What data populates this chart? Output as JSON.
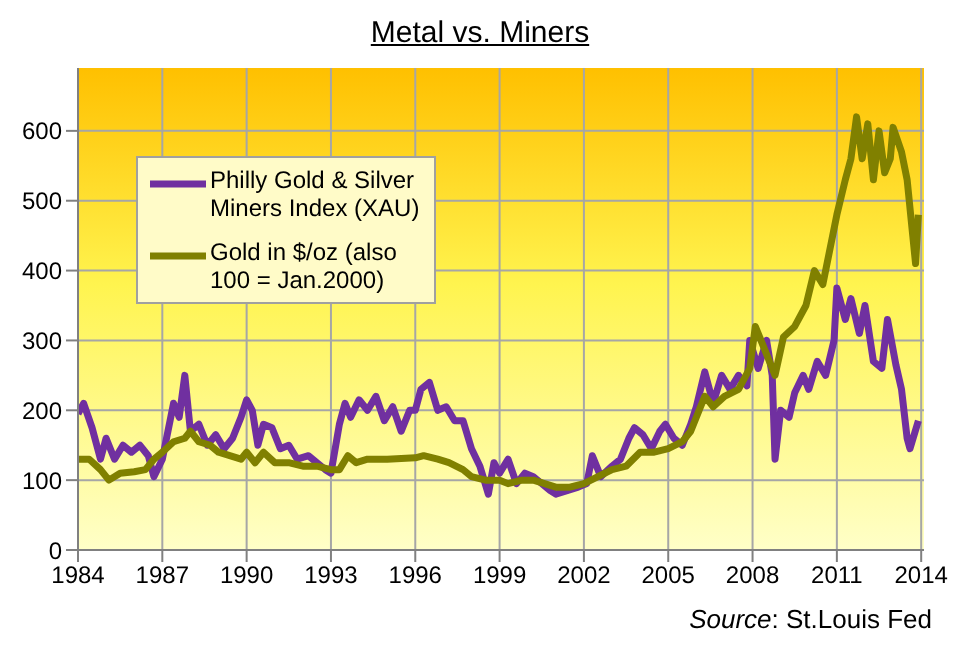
{
  "chart_data": {
    "type": "line",
    "title": "Metal vs. Miners",
    "annotations": [
      "Source: St.Louis Fed"
    ],
    "xlim": [
      1984,
      2014.1
    ],
    "xticks": [
      1984,
      1987,
      1990,
      1993,
      1996,
      1999,
      2002,
      2005,
      2008,
      2011,
      2014
    ],
    "ylim": [
      0,
      690
    ],
    "yticks": [
      0,
      100,
      200,
      300,
      400,
      500,
      600
    ],
    "grid": true,
    "legend": "top left",
    "marker": "none",
    "line_style": "solid",
    "series": [
      {
        "name": "Philly Gold & Silver Miners Index (XAU)",
        "color": "#7030a0",
        "x": [
          1984.0,
          1984.2,
          1984.5,
          1984.8,
          1985.0,
          1985.3,
          1985.6,
          1985.9,
          1986.2,
          1986.5,
          1986.7,
          1987.0,
          1987.2,
          1987.4,
          1987.6,
          1987.8,
          1988.0,
          1988.3,
          1988.6,
          1988.9,
          1989.2,
          1989.5,
          1989.8,
          1990.0,
          1990.2,
          1990.4,
          1990.6,
          1990.9,
          1991.2,
          1991.5,
          1991.8,
          1992.2,
          1992.5,
          1992.8,
          1993.0,
          1993.3,
          1993.5,
          1993.7,
          1994.0,
          1994.3,
          1994.6,
          1994.9,
          1995.2,
          1995.5,
          1995.8,
          1996.0,
          1996.2,
          1996.5,
          1996.8,
          1997.1,
          1997.4,
          1997.7,
          1998.0,
          1998.3,
          1998.6,
          1998.8,
          1999.0,
          1999.3,
          1999.6,
          1999.9,
          2000.2,
          2000.5,
          2000.8,
          2001.0,
          2001.4,
          2001.8,
          2002.1,
          2002.3,
          2002.6,
          2003.0,
          2003.3,
          2003.6,
          2003.8,
          2004.1,
          2004.4,
          2004.7,
          2004.9,
          2005.2,
          2005.5,
          2005.8,
          2006.0,
          2006.3,
          2006.6,
          2006.9,
          2007.2,
          2007.5,
          2007.8,
          2007.9,
          2008.2,
          2008.5,
          2008.7,
          2008.8,
          2009.0,
          2009.3,
          2009.5,
          2009.8,
          2010.0,
          2010.3,
          2010.6,
          2010.9,
          2011.0,
          2011.3,
          2011.5,
          2011.8,
          2012.0,
          2012.3,
          2012.6,
          2012.8,
          2013.1,
          2013.3,
          2013.5,
          2013.6,
          2013.9
        ],
        "values": [
          195,
          210,
          175,
          130,
          160,
          130,
          150,
          140,
          150,
          135,
          105,
          130,
          170,
          210,
          190,
          250,
          170,
          180,
          150,
          165,
          145,
          160,
          190,
          215,
          200,
          150,
          180,
          175,
          145,
          150,
          130,
          135,
          125,
          115,
          110,
          180,
          210,
          190,
          215,
          200,
          220,
          185,
          205,
          170,
          200,
          200,
          230,
          240,
          200,
          205,
          185,
          185,
          145,
          120,
          80,
          125,
          110,
          130,
          95,
          110,
          105,
          95,
          85,
          80,
          85,
          90,
          95,
          135,
          105,
          120,
          130,
          160,
          175,
          165,
          145,
          170,
          180,
          160,
          150,
          180,
          205,
          255,
          210,
          250,
          230,
          250,
          235,
          300,
          260,
          300,
          250,
          130,
          200,
          190,
          225,
          250,
          230,
          270,
          250,
          300,
          375,
          330,
          360,
          310,
          350,
          270,
          260,
          330,
          265,
          230,
          160,
          145,
          185
        ]
      },
      {
        "name": "Gold in $/oz (also 100 = Jan.2000)",
        "color": "#808000",
        "x": [
          1984.0,
          1984.4,
          1984.8,
          1985.1,
          1985.5,
          1986.0,
          1986.4,
          1986.7,
          1987.0,
          1987.4,
          1987.8,
          1988.0,
          1988.3,
          1988.7,
          1989.0,
          1989.4,
          1989.8,
          1990.0,
          1990.3,
          1990.6,
          1991.0,
          1991.5,
          1992.0,
          1992.5,
          1993.0,
          1993.3,
          1993.6,
          1993.9,
          1994.3,
          1995.0,
          1996.0,
          1996.3,
          1996.8,
          1997.2,
          1997.7,
          1998.0,
          1998.5,
          1999.0,
          1999.3,
          1999.8,
          2000.2,
          2000.6,
          2001.0,
          2001.5,
          2002.0,
          2002.5,
          2003.0,
          2003.5,
          2004.0,
          2004.5,
          2005.0,
          2005.5,
          2005.8,
          2006.3,
          2006.6,
          2007.0,
          2007.5,
          2007.9,
          2008.1,
          2008.4,
          2008.8,
          2009.1,
          2009.5,
          2009.9,
          2010.2,
          2010.5,
          2010.8,
          2011.0,
          2011.3,
          2011.5,
          2011.7,
          2011.9,
          2012.1,
          2012.3,
          2012.5,
          2012.7,
          2012.9,
          2013.0,
          2013.3,
          2013.5,
          2013.7,
          2013.8,
          2013.9
        ],
        "values": [
          130,
          130,
          115,
          100,
          110,
          112,
          115,
          130,
          140,
          155,
          160,
          170,
          155,
          150,
          140,
          135,
          130,
          140,
          125,
          140,
          125,
          125,
          120,
          120,
          115,
          115,
          135,
          125,
          130,
          130,
          132,
          135,
          130,
          125,
          115,
          105,
          100,
          100,
          95,
          100,
          100,
          95,
          90,
          90,
          95,
          105,
          115,
          120,
          140,
          140,
          145,
          155,
          170,
          220,
          205,
          220,
          230,
          260,
          320,
          290,
          250,
          305,
          320,
          350,
          400,
          380,
          440,
          480,
          530,
          560,
          620,
          560,
          610,
          530,
          600,
          540,
          560,
          605,
          570,
          530,
          450,
          410,
          480
        ]
      }
    ]
  }
}
